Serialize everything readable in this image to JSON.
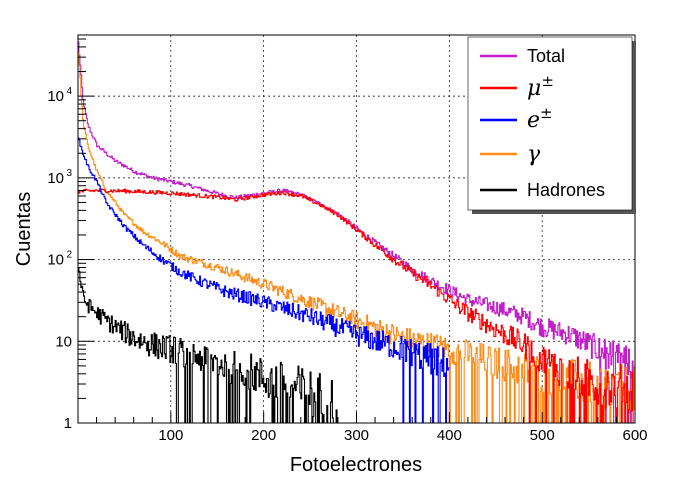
{
  "chart_data": {
    "type": "line",
    "xlabel": "Fotoelectrones",
    "ylabel": "Cuentas",
    "xlim": [
      0,
      600
    ],
    "ylim": [
      1,
      50000
    ],
    "y_scale": "log",
    "grid": true,
    "legend_position": "top-right",
    "x_ticks": [
      100,
      200,
      300,
      400,
      500,
      600
    ],
    "x_tick_labels": [
      "100",
      "200",
      "300",
      "400",
      "500",
      "600"
    ],
    "y_ticks": [
      1,
      10,
      100,
      1000,
      10000
    ],
    "y_tick_labels": [
      {
        "base": "1",
        "exp": ""
      },
      {
        "base": "10",
        "exp": ""
      },
      {
        "base": "10",
        "exp": "2"
      },
      {
        "base": "10",
        "exp": "3"
      },
      {
        "base": "10",
        "exp": "4"
      }
    ],
    "series": [
      {
        "name": "Total",
        "symbol": "",
        "color": "#c21fc9",
        "x": [
          0,
          5,
          10,
          20,
          30,
          40,
          50,
          60,
          80,
          100,
          120,
          150,
          170,
          200,
          220,
          240,
          260,
          280,
          300,
          320,
          340,
          360,
          380,
          400,
          420,
          450,
          480,
          500,
          530,
          560,
          600
        ],
        "y": [
          45000,
          9000,
          4500,
          2500,
          2000,
          1600,
          1400,
          1200,
          1000,
          900,
          800,
          640,
          570,
          650,
          700,
          620,
          480,
          360,
          240,
          160,
          110,
          75,
          55,
          42,
          32,
          26,
          20,
          15,
          12,
          8,
          5
        ]
      },
      {
        "name": "",
        "symbol": "μ±",
        "color": "#ff0000",
        "x": [
          0,
          20,
          50,
          100,
          150,
          170,
          200,
          220,
          240,
          260,
          280,
          300,
          320,
          340,
          360,
          380,
          400,
          420,
          450,
          480,
          500,
          530,
          560,
          600
        ],
        "y": [
          680,
          700,
          690,
          650,
          580,
          540,
          620,
          660,
          600,
          470,
          350,
          230,
          150,
          100,
          68,
          48,
          32,
          22,
          14,
          9,
          6,
          4,
          3,
          2.5
        ]
      },
      {
        "name": "",
        "symbol": "e±",
        "color": "#0000ff",
        "x": [
          0,
          5,
          10,
          20,
          30,
          50,
          70,
          90,
          110,
          130,
          160,
          200,
          250,
          300,
          350,
          400
        ],
        "y": [
          3000,
          2000,
          1400,
          900,
          500,
          250,
          150,
          100,
          70,
          55,
          40,
          30,
          20,
          12,
          8,
          5
        ]
      },
      {
        "name": "",
        "symbol": "γ",
        "color": "#ff8c1a",
        "x": [
          0,
          5,
          10,
          20,
          30,
          50,
          70,
          90,
          110,
          150,
          200,
          250,
          300,
          350,
          400,
          450,
          500,
          550,
          600
        ],
        "y": [
          35000,
          5000,
          2500,
          1200,
          700,
          350,
          220,
          160,
          110,
          80,
          50,
          30,
          18,
          11,
          8,
          5.5,
          4,
          3,
          2.5
        ]
      },
      {
        "name": "Hadrones",
        "symbol": "",
        "color": "#000000",
        "x": [
          0,
          5,
          10,
          20,
          40,
          60,
          80,
          100,
          120,
          140,
          160,
          180,
          200,
          220,
          240,
          260,
          280
        ],
        "y": [
          80,
          35,
          28,
          22,
          15,
          11,
          9,
          8,
          7,
          6,
          5,
          4.5,
          3.5,
          3,
          2.5,
          2,
          1.5
        ]
      }
    ]
  }
}
